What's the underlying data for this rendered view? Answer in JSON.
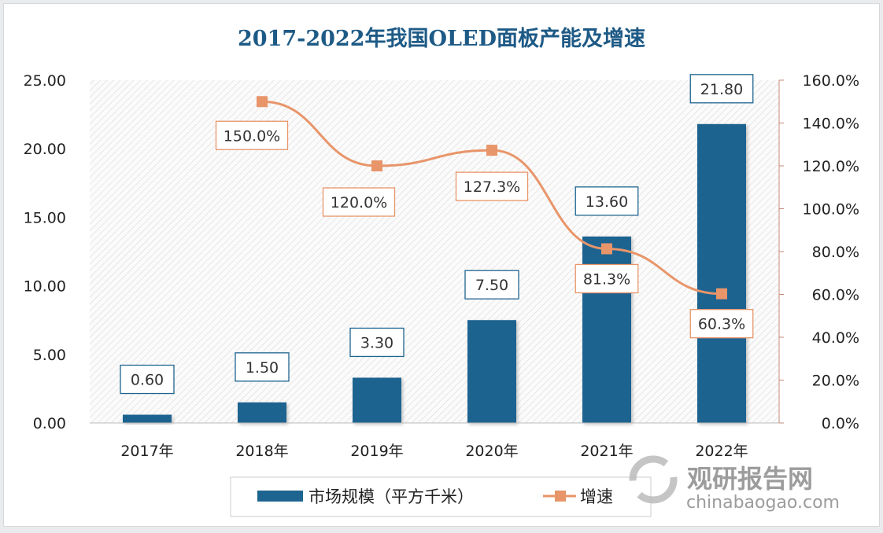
{
  "chart_data": {
    "type": "bar+line",
    "title": "2017-2022年我国OLED面板产能及增速",
    "categories": [
      "2017年",
      "2018年",
      "2019年",
      "2020年",
      "2021年",
      "2022年"
    ],
    "series": [
      {
        "name": "市场规模（平方千米）",
        "type": "bar",
        "axis": "left",
        "values": [
          0.6,
          1.5,
          3.3,
          7.5,
          13.6,
          21.8
        ],
        "labels": [
          "0.60",
          "1.50",
          "3.30",
          "7.50",
          "13.60",
          "21.80"
        ],
        "color": "#1e6490"
      },
      {
        "name": "增速",
        "type": "line",
        "axis": "right",
        "values": [
          null,
          150.0,
          120.0,
          127.3,
          81.3,
          60.3
        ],
        "labels": [
          "",
          "150.0%",
          "120.0%",
          "127.3%",
          "81.3%",
          "60.3%"
        ],
        "color": "#e8956a"
      }
    ],
    "left_axis": {
      "ylim": [
        0,
        25
      ],
      "ticks": [
        "0.00",
        "5.00",
        "10.00",
        "15.00",
        "20.00",
        "25.00"
      ]
    },
    "right_axis": {
      "ylim": [
        0,
        160
      ],
      "ticks": [
        "0.0%",
        "20.0%",
        "40.0%",
        "60.0%",
        "80.0%",
        "100.0%",
        "120.0%",
        "140.0%",
        "160.0%"
      ]
    },
    "legend_placement": "bottom",
    "grid": false
  },
  "watermark": {
    "name": "观研报告网",
    "url": "chinabaogao.com"
  }
}
